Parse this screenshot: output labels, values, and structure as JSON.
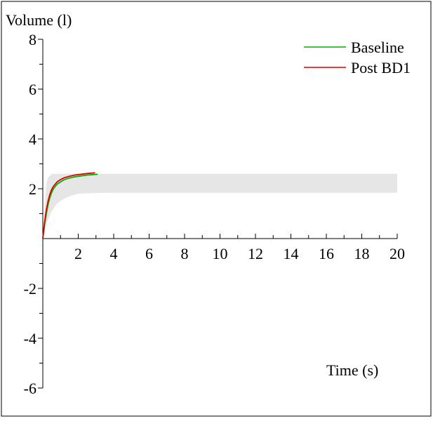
{
  "chart_data": {
    "type": "line",
    "ylabel": "Volume (l)",
    "xlabel": "Time (s)",
    "xlim": [
      0,
      20
    ],
    "ylim": [
      -6,
      8
    ],
    "x_ticks": [
      2,
      4,
      6,
      8,
      10,
      12,
      14,
      16,
      18,
      20
    ],
    "x_minor_step": 1,
    "y_ticks": [
      -6,
      -4,
      -2,
      2,
      4,
      6,
      8
    ],
    "y_minor_step": 1,
    "grid": false,
    "legend_position": "top-right",
    "predicted_band": {
      "color": "#e6e6e6",
      "upper": {
        "x": [
          0.2,
          0.3,
          0.5,
          20
        ],
        "y": [
          2.2,
          2.45,
          2.6,
          2.6
        ]
      },
      "lower": {
        "x": [
          0,
          0.2,
          0.5,
          0.8,
          1.2,
          1.6,
          2,
          3,
          4,
          20
        ],
        "y": [
          0,
          0.6,
          1.1,
          1.4,
          1.6,
          1.72,
          1.8,
          1.83,
          1.84,
          1.84
        ]
      }
    },
    "series": [
      {
        "name": "Baseline",
        "color": "#00b000",
        "x": [
          0,
          0.1,
          0.2,
          0.3,
          0.4,
          0.5,
          0.6,
          0.8,
          1.0,
          1.2,
          1.5,
          1.8,
          2.0,
          2.5,
          3.1
        ],
        "y": [
          0,
          0.55,
          1.0,
          1.38,
          1.65,
          1.85,
          2.0,
          2.18,
          2.28,
          2.36,
          2.43,
          2.48,
          2.5,
          2.55,
          2.58
        ]
      },
      {
        "name": "Post BD1",
        "color": "#e00000",
        "x": [
          0,
          0.1,
          0.2,
          0.3,
          0.4,
          0.5,
          0.6,
          0.8,
          1.0,
          1.2,
          1.5,
          1.8,
          2.0,
          2.5,
          2.95
        ],
        "y": [
          0,
          0.65,
          1.15,
          1.52,
          1.78,
          1.97,
          2.1,
          2.27,
          2.37,
          2.44,
          2.5,
          2.55,
          2.57,
          2.61,
          2.64
        ]
      }
    ]
  }
}
